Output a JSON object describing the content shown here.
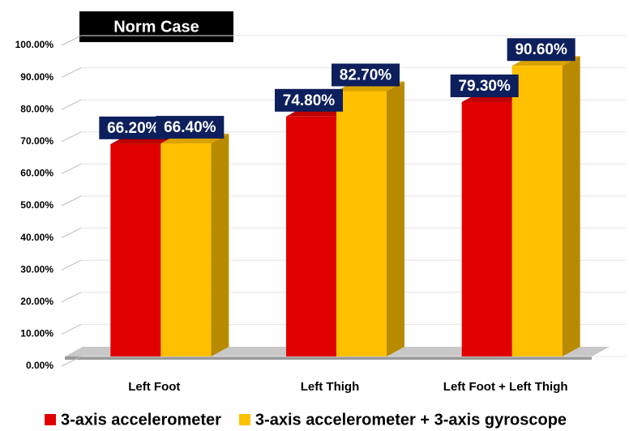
{
  "chart_data": {
    "type": "bar3d",
    "title": "Norm Case",
    "categories": [
      "Left Foot",
      "Left Thigh",
      "Left Foot + Left Thigh"
    ],
    "series": [
      {
        "name": "3-axis accelerometer",
        "color": "#e00000",
        "values": [
          66.2,
          74.8,
          79.3
        ],
        "value_labels": [
          "66.20%",
          "74.80%",
          "79.30%"
        ]
      },
      {
        "name": "3-axis accelerometer + 3-axis gyroscope",
        "color": "#ffc000",
        "values": [
          66.4,
          82.7,
          90.6
        ],
        "value_labels": [
          "66.40%",
          "82.70%",
          "90.60%"
        ]
      }
    ],
    "ylim": [
      0,
      100
    ],
    "yticks": [
      {
        "value": 0,
        "label": "0.00%"
      },
      {
        "value": 10,
        "label": "10.00%"
      },
      {
        "value": 20,
        "label": "20.00%"
      },
      {
        "value": 30,
        "label": "30.00%"
      },
      {
        "value": 40,
        "label": "40.00%"
      },
      {
        "value": 50,
        "label": "50.00%"
      },
      {
        "value": 60,
        "label": "60.00%"
      },
      {
        "value": 70,
        "label": "70.00%"
      },
      {
        "value": 80,
        "label": "80.00%"
      },
      {
        "value": 90,
        "label": "90.00%"
      },
      {
        "value": 100,
        "label": "100.00%"
      }
    ],
    "grid": true,
    "legend": "bottom"
  }
}
